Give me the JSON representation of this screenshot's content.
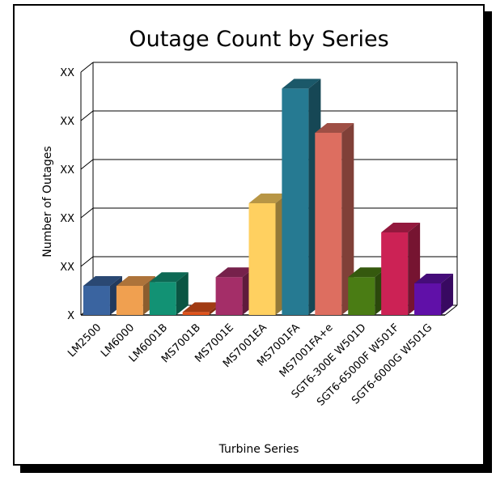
{
  "chart_data": {
    "type": "bar",
    "title": "Outage Count by Series",
    "xlabel": "Turbine Series",
    "ylabel": "Number of Outages",
    "ytick_labels": [
      "X",
      "XX",
      "XX",
      "XX",
      "XX",
      "XX"
    ],
    "ylim": [
      0,
      5
    ],
    "grid": true,
    "legend": "none",
    "categories": [
      "LM2500",
      "LM6000",
      "LM6001B",
      "MS7001B",
      "MS7001E",
      "MS7001EA",
      "MS7001FA",
      "MS7001FA+e",
      "SGT6-300E W501D",
      "SGT6-65000F W501F",
      "SGT6-6000G W501G"
    ],
    "values": [
      0.6,
      0.6,
      0.68,
      0.06,
      0.78,
      2.3,
      4.66,
      3.75,
      0.78,
      1.7,
      0.65
    ],
    "colors": [
      "#3a64a0",
      "#f0a050",
      "#129274",
      "#e0521a",
      "#a42e68",
      "#ffd060",
      "#267a92",
      "#dd6e60",
      "#4a7c14",
      "#cc2255",
      "#6010a8"
    ]
  }
}
